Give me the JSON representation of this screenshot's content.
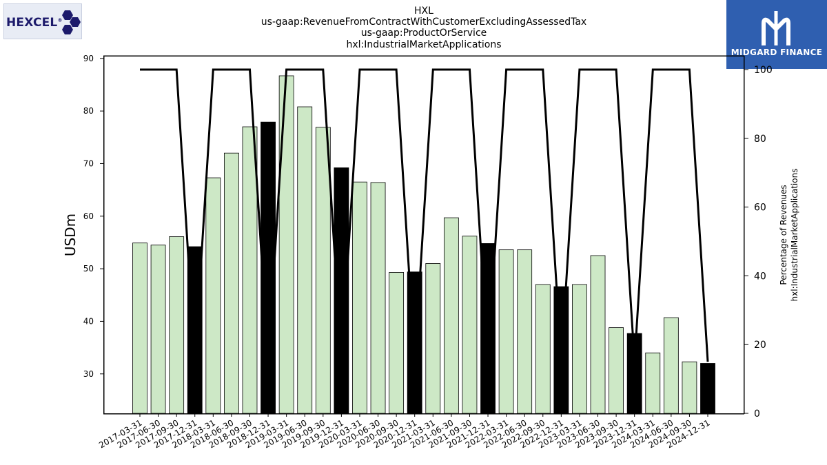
{
  "titles": [
    "HXL",
    "us-gaap:RevenueFromContractWithCustomerExcludingAssessedTax",
    "us-gaap:ProductOrService",
    "hxl:IndustrialMarketApplications"
  ],
  "logos": {
    "left_text": "HEXCEL",
    "left_trademark": "®",
    "left_icon": "hexagon-cluster-icon",
    "right_text": "MIDGARD FINANCE",
    "right_icon": "midgard-m-icon",
    "right_bg": "#2f5fb0"
  },
  "chart_data": {
    "type": "bar",
    "ylabel": "USDm",
    "y2label_line1": "Percentage of Revenues",
    "y2label_line2": "hxl:IndustrialMarketApplications",
    "ylim": [
      22.5,
      90.5
    ],
    "y2lim": [
      0,
      104
    ],
    "yticks": [
      30,
      40,
      50,
      60,
      70,
      80,
      90
    ],
    "y2ticks": [
      0,
      20,
      40,
      60,
      80,
      100
    ],
    "categories": [
      "2017-03-31",
      "2017-06-30",
      "2017-09-30",
      "2017-12-31",
      "2018-03-31",
      "2018-06-30",
      "2018-09-30",
      "2018-12-31",
      "2019-03-31",
      "2019-06-30",
      "2019-09-30",
      "2019-12-31",
      "2020-03-31",
      "2020-06-30",
      "2020-09-30",
      "2020-12-31",
      "2021-03-31",
      "2021-06-30",
      "2021-09-30",
      "2021-12-31",
      "2022-03-31",
      "2022-06-30",
      "2022-09-30",
      "2022-12-31",
      "2023-03-31",
      "2023-06-30",
      "2023-09-30",
      "2023-12-31",
      "2024-03-31",
      "2024-06-30",
      "2024-09-30",
      "2024-12-31"
    ],
    "values": [
      54.9,
      54.5,
      56.1,
      54.2,
      67.3,
      72.0,
      77.0,
      77.9,
      86.7,
      80.8,
      76.9,
      69.2,
      66.5,
      66.4,
      49.3,
      49.4,
      51.0,
      59.7,
      56.2,
      54.8,
      53.6,
      53.6,
      47.0,
      46.6,
      47.0,
      52.5,
      38.8,
      37.7,
      34.0,
      40.7,
      32.3,
      32.0
    ],
    "highlight": [
      false,
      false,
      false,
      true,
      false,
      false,
      false,
      true,
      false,
      false,
      false,
      true,
      false,
      false,
      false,
      true,
      false,
      false,
      false,
      true,
      false,
      false,
      false,
      true,
      false,
      false,
      false,
      true,
      false,
      false,
      false,
      true
    ],
    "series": [
      {
        "name": "",
        "axis": "right",
        "type": "line",
        "values": [
          100,
          100,
          100,
          15,
          100,
          100,
          100,
          15,
          100,
          100,
          100,
          15,
          100,
          100,
          100,
          15,
          100,
          100,
          100,
          15,
          100,
          100,
          100,
          15,
          100,
          100,
          100,
          15,
          100,
          100,
          100,
          15
        ]
      }
    ],
    "colors": {
      "bar": "#cde8c6",
      "bar_highlight": "#000000",
      "line": "#000000"
    }
  }
}
